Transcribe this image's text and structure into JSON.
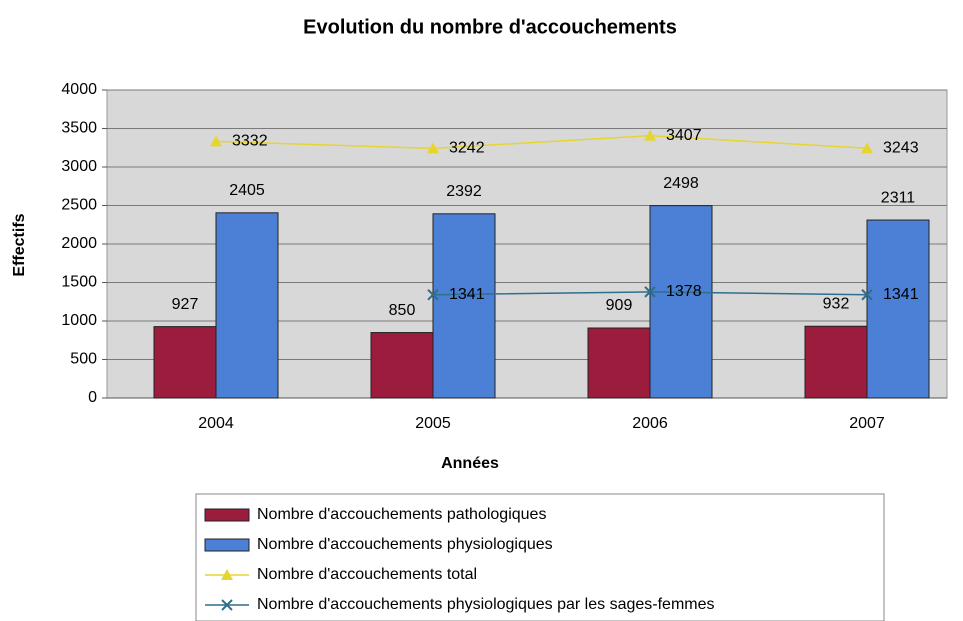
{
  "chart_data": {
    "type": "bar",
    "title": "Evolution du nombre d'accouchements",
    "xlabel": "Années",
    "ylabel": "Effectifs",
    "categories": [
      "2004",
      "2005",
      "2006",
      "2007"
    ],
    "series": [
      {
        "name": "Nombre d'accouchements pathologiques",
        "type": "bar",
        "color": "#9b1c3c",
        "values": [
          927,
          850,
          909,
          932
        ]
      },
      {
        "name": "Nombre d'accouchements physiologiques",
        "type": "bar",
        "color": "#4b80d6",
        "values": [
          2405,
          2392,
          2498,
          2311
        ]
      },
      {
        "name": "Nombre d'accouchements total",
        "type": "line",
        "marker": "triangle",
        "color": "#e6d530",
        "values": [
          3332,
          3242,
          3407,
          3243
        ]
      },
      {
        "name": "Nombre d'accouchements physiologiques par les sages-femmes",
        "type": "line",
        "marker": "x",
        "color": "#2f6f8c",
        "values": [
          null,
          1341,
          1378,
          1341
        ]
      }
    ],
    "ylim": [
      0,
      4000
    ],
    "yticks": [
      0,
      500,
      1000,
      1500,
      2000,
      2500,
      3000,
      3500,
      4000
    ],
    "grid": true,
    "legend": "bottom"
  }
}
